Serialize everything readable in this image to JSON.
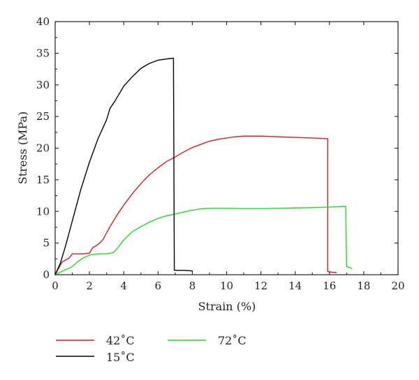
{
  "chart_data": {
    "type": "line",
    "xlabel": "Strain (%)",
    "ylabel": "Stress (MPa)",
    "xlim": [
      0,
      20
    ],
    "ylim": [
      0,
      40
    ],
    "xticks": [
      0,
      2,
      4,
      6,
      8,
      10,
      12,
      14,
      16,
      18,
      20
    ],
    "yticks": [
      0,
      5,
      10,
      15,
      20,
      25,
      30,
      35,
      40
    ],
    "grid": false,
    "legend": "bottom",
    "series": [
      {
        "name": "42°C",
        "color": "#e4191b",
        "x": [
          0,
          0.2,
          0.4,
          0.6,
          0.8,
          1.0,
          1.2,
          1.6,
          2.0,
          2.2,
          2.4,
          2.6,
          2.8,
          3.2,
          3.6,
          4.0,
          4.5,
          5.0,
          5.5,
          6.0,
          6.5,
          7.0,
          7.5,
          8.0,
          8.5,
          9.0,
          9.5,
          10.0,
          10.5,
          11.0,
          11.5,
          12.0,
          12.5,
          13.0,
          13.5,
          14.0,
          14.5,
          15.0,
          15.5,
          15.9,
          15.9,
          16.0,
          16.1,
          16.4
        ],
        "y": [
          0,
          1.0,
          2.0,
          2.3,
          2.6,
          3.3,
          3.3,
          3.3,
          3.4,
          4.3,
          4.6,
          5.0,
          5.6,
          7.6,
          9.4,
          11.0,
          12.8,
          14.4,
          15.8,
          16.9,
          17.9,
          18.6,
          19.4,
          20.1,
          20.6,
          21.1,
          21.4,
          21.6,
          21.8,
          21.9,
          21.9,
          21.9,
          21.85,
          21.8,
          21.75,
          21.7,
          21.65,
          21.6,
          21.55,
          21.5,
          0.5,
          0.45,
          0.4,
          0.35
        ]
      },
      {
        "name": "72°C",
        "color": "#1ee11e",
        "x": [
          0,
          0.3,
          0.6,
          0.8,
          1.0,
          1.3,
          1.6,
          2.0,
          2.5,
          3.0,
          3.4,
          3.7,
          4.0,
          4.5,
          5.0,
          5.5,
          6.0,
          6.5,
          7.0,
          7.5,
          8.0,
          8.5,
          9.0,
          9.5,
          10.0,
          11.0,
          12.0,
          13.0,
          14.0,
          15.0,
          16.0,
          16.5,
          16.8,
          16.95,
          17.0,
          17.3
        ],
        "y": [
          0,
          0.4,
          0.8,
          1.0,
          1.3,
          2.0,
          2.6,
          3.1,
          3.3,
          3.3,
          3.5,
          4.4,
          5.5,
          6.8,
          7.6,
          8.3,
          8.9,
          9.3,
          9.6,
          9.9,
          10.2,
          10.4,
          10.5,
          10.5,
          10.5,
          10.45,
          10.45,
          10.5,
          10.55,
          10.6,
          10.7,
          10.75,
          10.8,
          10.8,
          1.3,
          1.0
        ]
      },
      {
        "name": "15°C",
        "color": "#000000",
        "x": [
          0,
          0.3,
          0.6,
          1.0,
          1.5,
          2.0,
          2.5,
          3.0,
          3.2,
          3.5,
          4.0,
          4.5,
          5.0,
          5.5,
          6.0,
          6.5,
          6.8,
          6.9,
          6.95,
          6.95,
          7.5,
          8.0
        ],
        "y": [
          0,
          1.8,
          4.5,
          8.5,
          13.5,
          17.8,
          21.5,
          24.5,
          26.3,
          27.5,
          29.8,
          31.3,
          32.6,
          33.4,
          33.9,
          34.1,
          34.2,
          34.2,
          0.8,
          0.7,
          0.7,
          0.6
        ]
      }
    ]
  },
  "legend": {
    "items": [
      {
        "label": "42˚C",
        "color": "#e4191b"
      },
      {
        "label": "72˚C",
        "color": "#1ee11e"
      },
      {
        "label": "15˚C",
        "color": "#000000"
      }
    ]
  }
}
